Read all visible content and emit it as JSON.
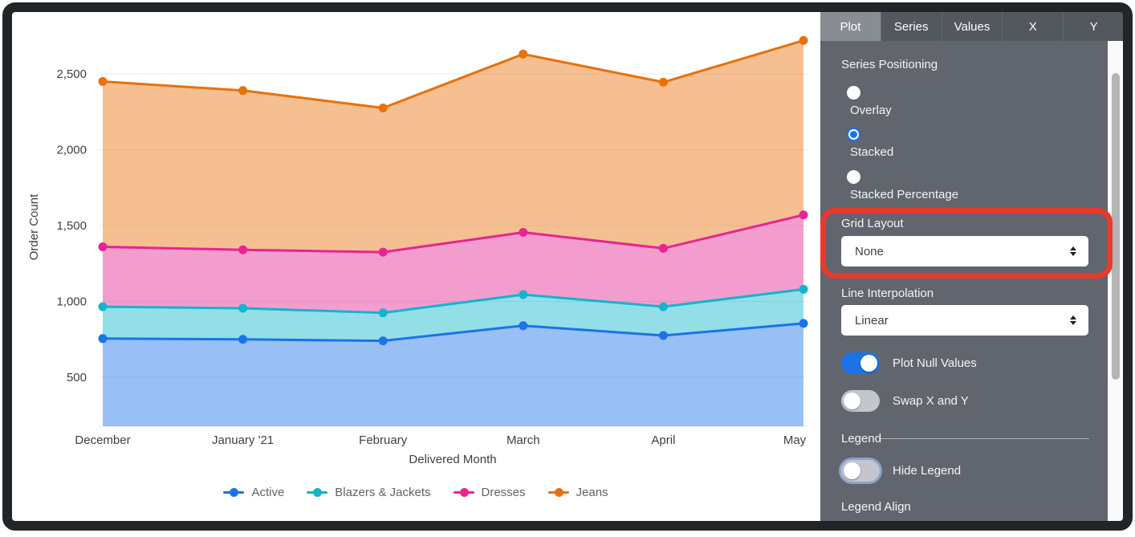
{
  "panel": {
    "tabs": [
      {
        "label": "Plot",
        "active": true
      },
      {
        "label": "Series",
        "active": false
      },
      {
        "label": "Values",
        "active": false
      },
      {
        "label": "X",
        "active": false
      },
      {
        "label": "Y",
        "active": false
      }
    ],
    "series_positioning": {
      "label": "Series Positioning",
      "options": [
        {
          "label": "Overlay",
          "selected": false
        },
        {
          "label": "Stacked",
          "selected": true
        },
        {
          "label": "Stacked Percentage",
          "selected": false
        }
      ]
    },
    "grid_layout": {
      "label": "Grid Layout",
      "value": "None",
      "annotated": true
    },
    "line_interpolation": {
      "label": "Line Interpolation",
      "value": "Linear"
    },
    "toggles": [
      {
        "label": "Plot Null Values",
        "on": true
      },
      {
        "label": "Swap X and Y",
        "on": false
      }
    ],
    "legend_header": "Legend",
    "hide_legend": {
      "label": "Hide Legend",
      "on": false
    },
    "legend_align_label": "Legend Align"
  },
  "annotation": {
    "shape": "red-rounded-rectangle",
    "color": "#e8392b",
    "target": "Grid Layout control"
  },
  "chart_data": {
    "type": "area",
    "stacked": true,
    "x": [
      "December",
      "January '21",
      "February",
      "March",
      "April",
      "May"
    ],
    "xlabel": "Delivered Month",
    "ylabel": "Order Count",
    "yticks": [
      500,
      1000,
      1500,
      2000,
      2500
    ],
    "ylim": [
      150,
      2830
    ],
    "grid": true,
    "legend_position": "bottom",
    "series": [
      {
        "name": "Active",
        "color": "#1a73e8",
        "values": [
          755,
          750,
          740,
          840,
          775,
          855
        ]
      },
      {
        "name": "Blazers & Jackets",
        "color": "#12b5cb",
        "values": [
          210,
          205,
          185,
          205,
          190,
          225
        ]
      },
      {
        "name": "Dresses",
        "color": "#e52592",
        "values": [
          395,
          385,
          400,
          410,
          385,
          490
        ]
      },
      {
        "name": "Jeans",
        "color": "#e8710a",
        "values": [
          1090,
          1050,
          950,
          1175,
          1095,
          1150
        ]
      }
    ],
    "stacked_tops": {
      "Active": [
        755,
        750,
        740,
        840,
        775,
        855
      ],
      "Blazers & Jackets": [
        965,
        955,
        925,
        1045,
        965,
        1080
      ],
      "Dresses": [
        1360,
        1340,
        1325,
        1455,
        1350,
        1570
      ],
      "Jeans": [
        2450,
        2390,
        2275,
        2630,
        2445,
        2720
      ]
    }
  }
}
